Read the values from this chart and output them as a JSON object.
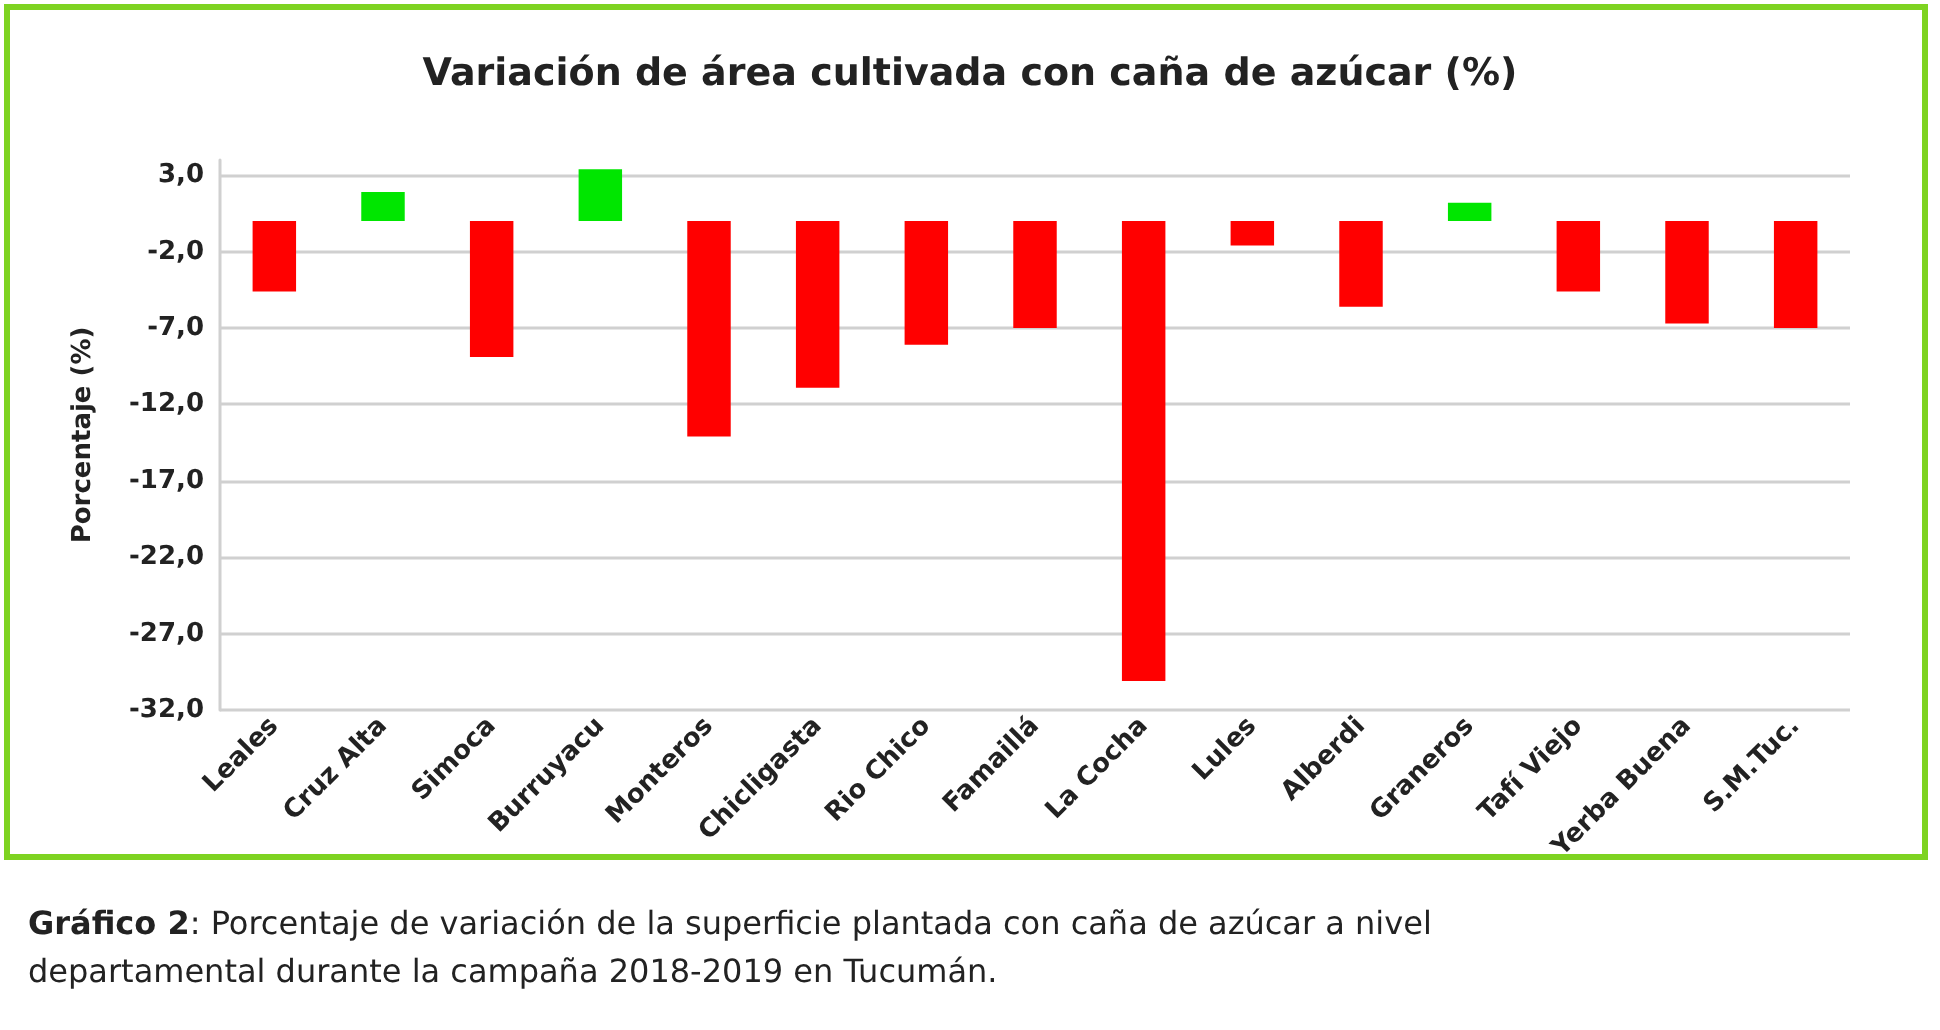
{
  "chart_data": {
    "type": "bar",
    "title": "Variación de área cultivada con caña de azúcar (%)",
    "ylabel": "Porcentaje (%)",
    "categories": [
      "Leales",
      "Cruz Alta",
      "Simoca",
      "Burruyacu",
      "Monteros",
      "Chicligasta",
      "Rio Chico",
      "Famaillá",
      "La Cocha",
      "Lules",
      "Alberdi",
      "Graneros",
      "Tafí Viejo",
      "Yerba Buena",
      "S.M.Tuc."
    ],
    "values": [
      -4.6,
      1.9,
      -8.9,
      3.4,
      -14.1,
      -10.9,
      -8.1,
      -7.0,
      -30.1,
      -1.6,
      -5.6,
      1.2,
      -4.6,
      -6.7,
      -7.0
    ],
    "colors": [
      "#ff0000",
      "#00e600",
      "#ff0000",
      "#00e600",
      "#ff0000",
      "#ff0000",
      "#ff0000",
      "#ff0000",
      "#ff0000",
      "#ff0000",
      "#ff0000",
      "#00e600",
      "#ff0000",
      "#ff0000",
      "#ff0000"
    ],
    "ylim": [
      -32,
      4
    ],
    "yticks": [
      {
        "value": 3,
        "label": "3,0"
      },
      {
        "value": -2,
        "label": "-2,0"
      },
      {
        "value": -7,
        "label": "-7,0"
      },
      {
        "value": -12,
        "label": "-12,0"
      },
      {
        "value": -17,
        "label": "-17,0"
      },
      {
        "value": -22,
        "label": "-22,0"
      },
      {
        "value": -27,
        "label": "-27,0"
      },
      {
        "value": -32,
        "label": "-32,0"
      }
    ],
    "grid": "y",
    "annotations": [
      "Gráfico 2: Porcentaje de variación de la superficie plantada con caña de azúcar a nivel departamental durante la campaña 2018-2019 en Tucumán."
    ]
  }
}
